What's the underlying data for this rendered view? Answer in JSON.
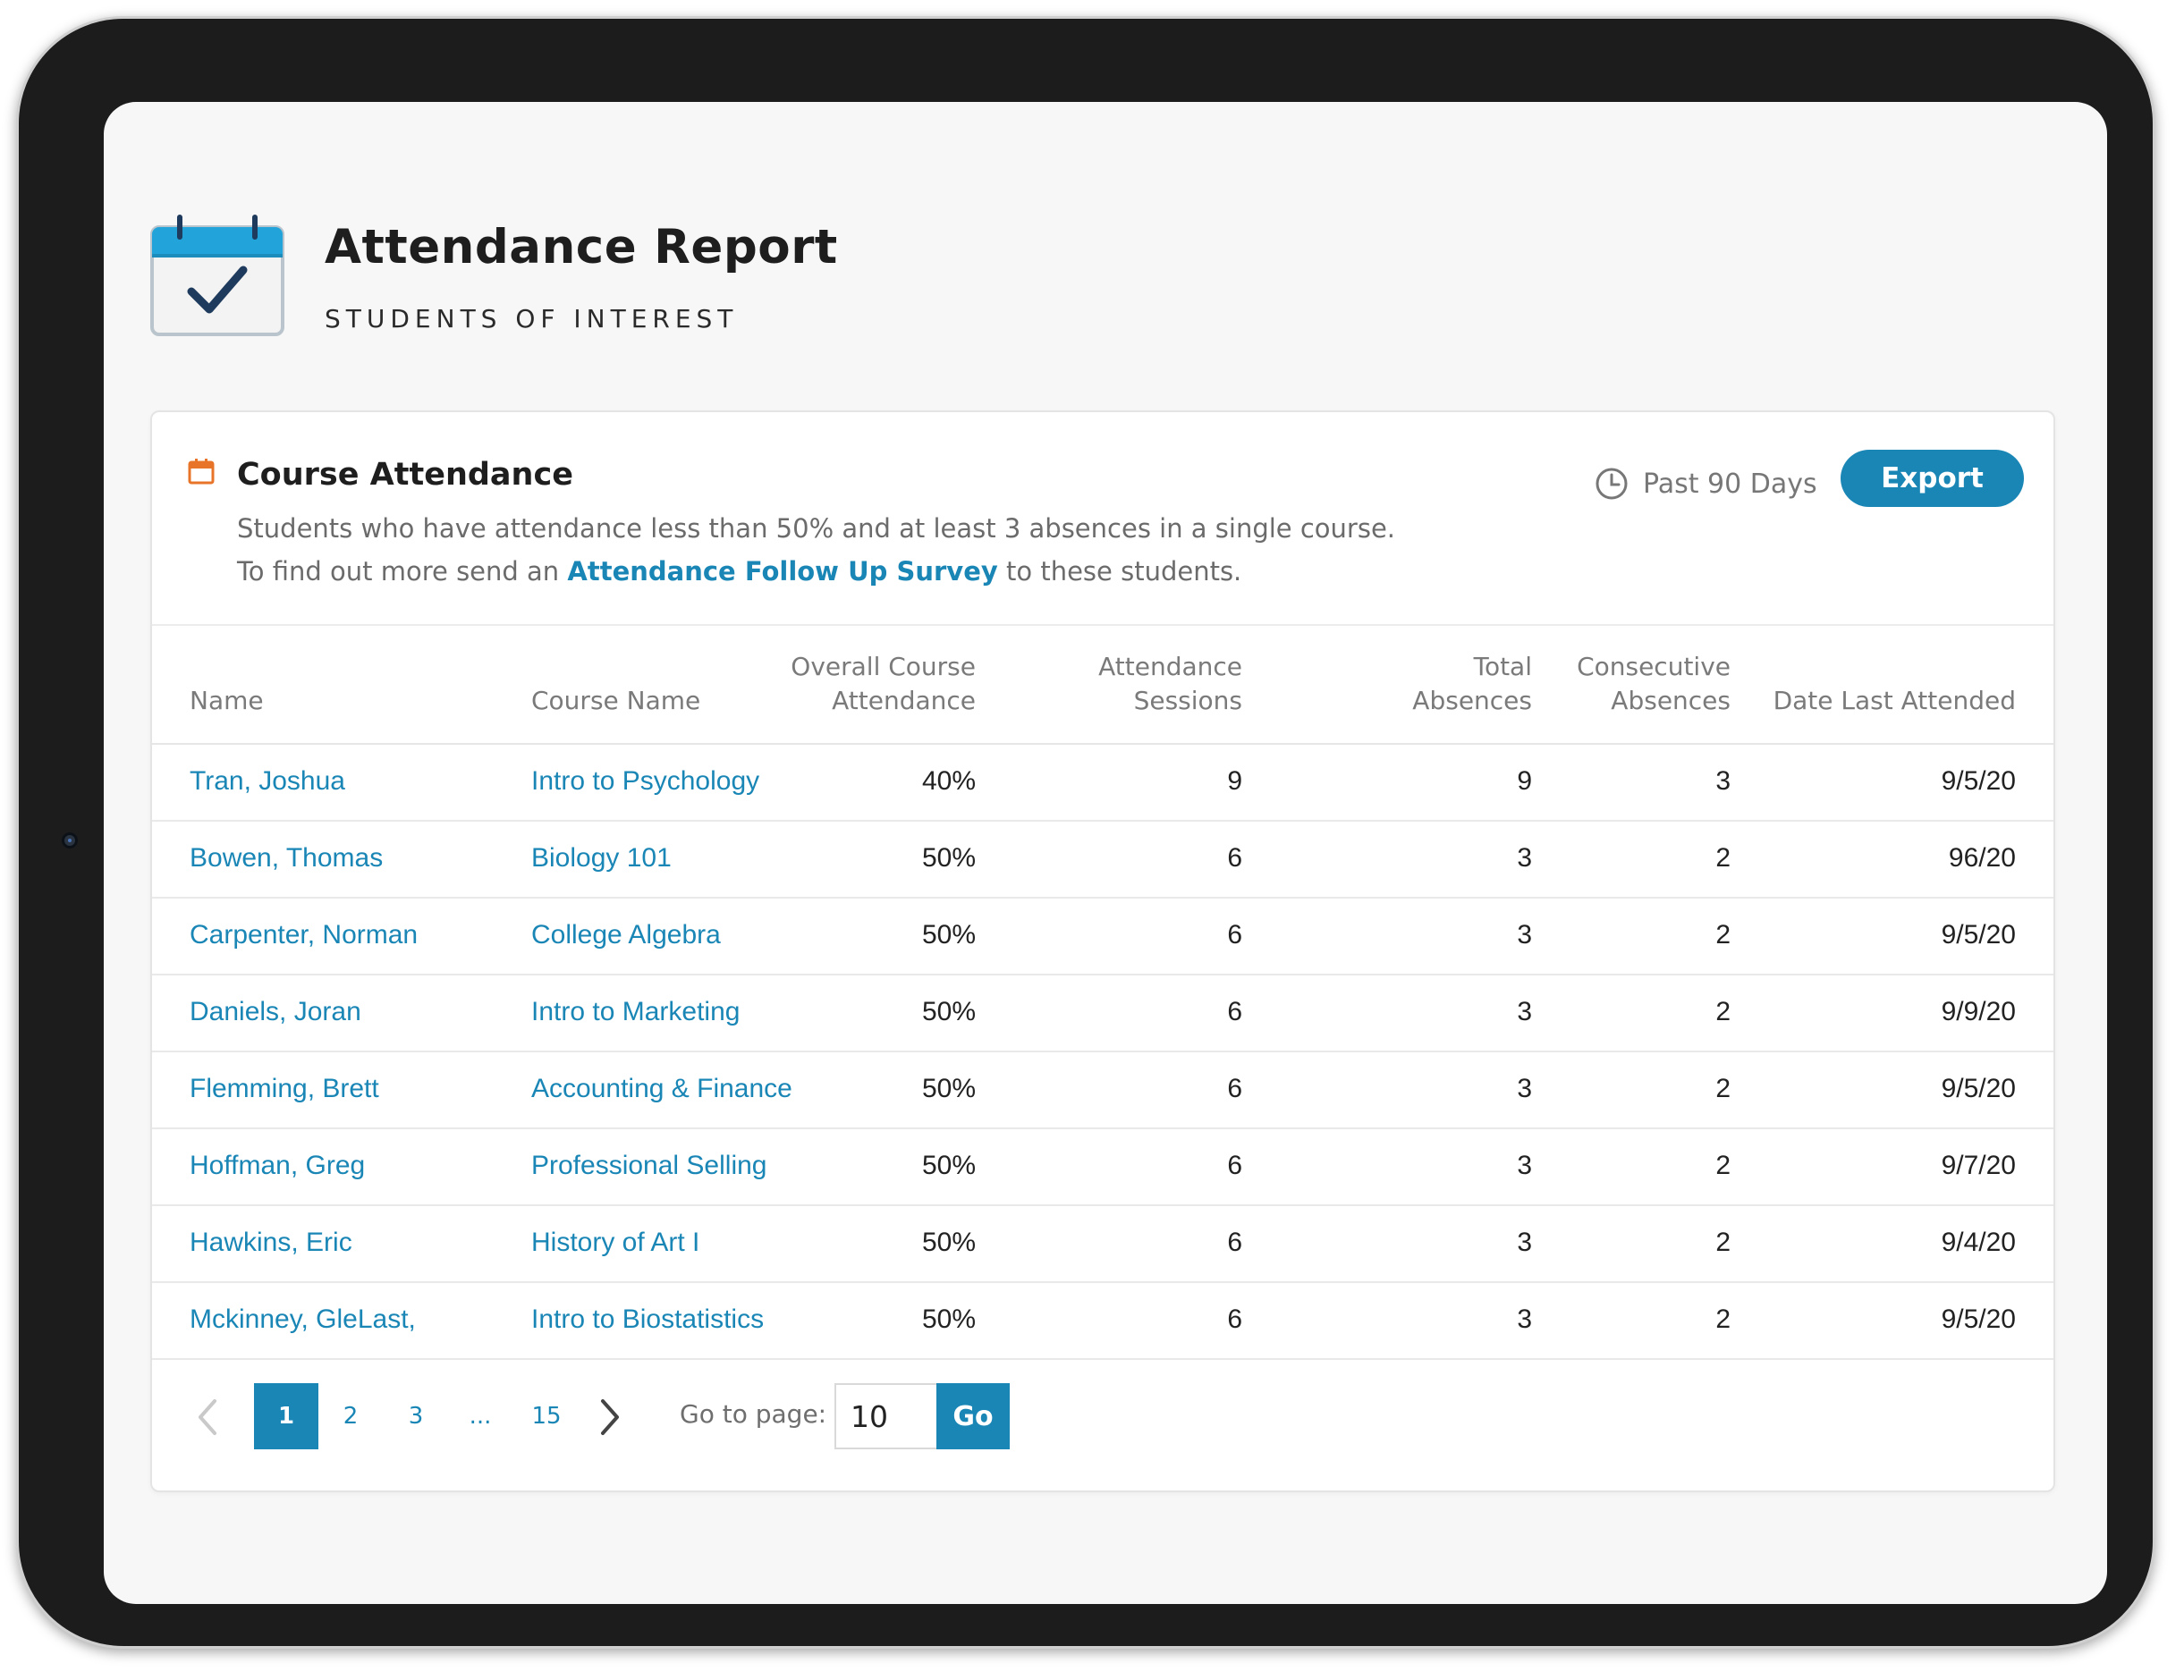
{
  "header": {
    "title": "Attendance Report",
    "subtitle": "STUDENTS OF INTEREST",
    "icon": "calendar-check-icon"
  },
  "card": {
    "title": "Course Attendance",
    "icon": "calendar-icon",
    "description_line1": "Students who have attendance less than 50% and at least 3 absences in a single course.",
    "description_line2_pre": "To find out more send an ",
    "description_link": "Attendance Follow Up Survey",
    "description_line2_post": " to these students.",
    "timeframe": "Past 90 Days",
    "export_label": "Export"
  },
  "table": {
    "columns": {
      "name": "Name",
      "course": "Course Name",
      "attendance_1": "Overall Course",
      "attendance_2": "Attendance",
      "sessions_1": "Attendance",
      "sessions_2": "Sessions",
      "total_1": "Total",
      "total_2": "Absences",
      "consecutive_1": "Consecutive",
      "consecutive_2": "Absences",
      "last": "Date Last Attended"
    },
    "rows": [
      {
        "name": "Tran, Joshua",
        "course": "Intro to Psychology",
        "attendance": "40%",
        "sessions": "9",
        "total": "9",
        "consecutive": "3",
        "last": "9/5/20"
      },
      {
        "name": "Bowen, Thomas",
        "course": "Biology 101",
        "attendance": "50%",
        "sessions": "6",
        "total": "3",
        "consecutive": "2",
        "last": "96/20"
      },
      {
        "name": "Carpenter, Norman",
        "course": "College Algebra",
        "attendance": "50%",
        "sessions": "6",
        "total": "3",
        "consecutive": "2",
        "last": "9/5/20"
      },
      {
        "name": "Daniels, Joran",
        "course": "Intro to Marketing",
        "attendance": "50%",
        "sessions": "6",
        "total": "3",
        "consecutive": "2",
        "last": "9/9/20"
      },
      {
        "name": "Flemming, Brett",
        "course": "Accounting & Finance",
        "attendance": "50%",
        "sessions": "6",
        "total": "3",
        "consecutive": "2",
        "last": "9/5/20"
      },
      {
        "name": "Hoffman, Greg",
        "course": "Professional Selling",
        "attendance": "50%",
        "sessions": "6",
        "total": "3",
        "consecutive": "2",
        "last": "9/7/20"
      },
      {
        "name": "Hawkins, Eric",
        "course": "History of Art I",
        "attendance": "50%",
        "sessions": "6",
        "total": "3",
        "consecutive": "2",
        "last": "9/4/20"
      },
      {
        "name": "Mckinney, GleLast,",
        "course": "Intro to Biostatistics",
        "attendance": "50%",
        "sessions": "6",
        "total": "3",
        "consecutive": "2",
        "last": "9/5/20"
      }
    ]
  },
  "pagination": {
    "pages": [
      "1",
      "2",
      "3",
      "15"
    ],
    "ellipsis": "...",
    "active": "1",
    "goto_label": "Go to page:",
    "goto_value": "10",
    "go_label": "Go"
  },
  "colors": {
    "accent": "#1a86b6",
    "icon_orange": "#e8742a",
    "bezel": "#1c1c1c"
  }
}
